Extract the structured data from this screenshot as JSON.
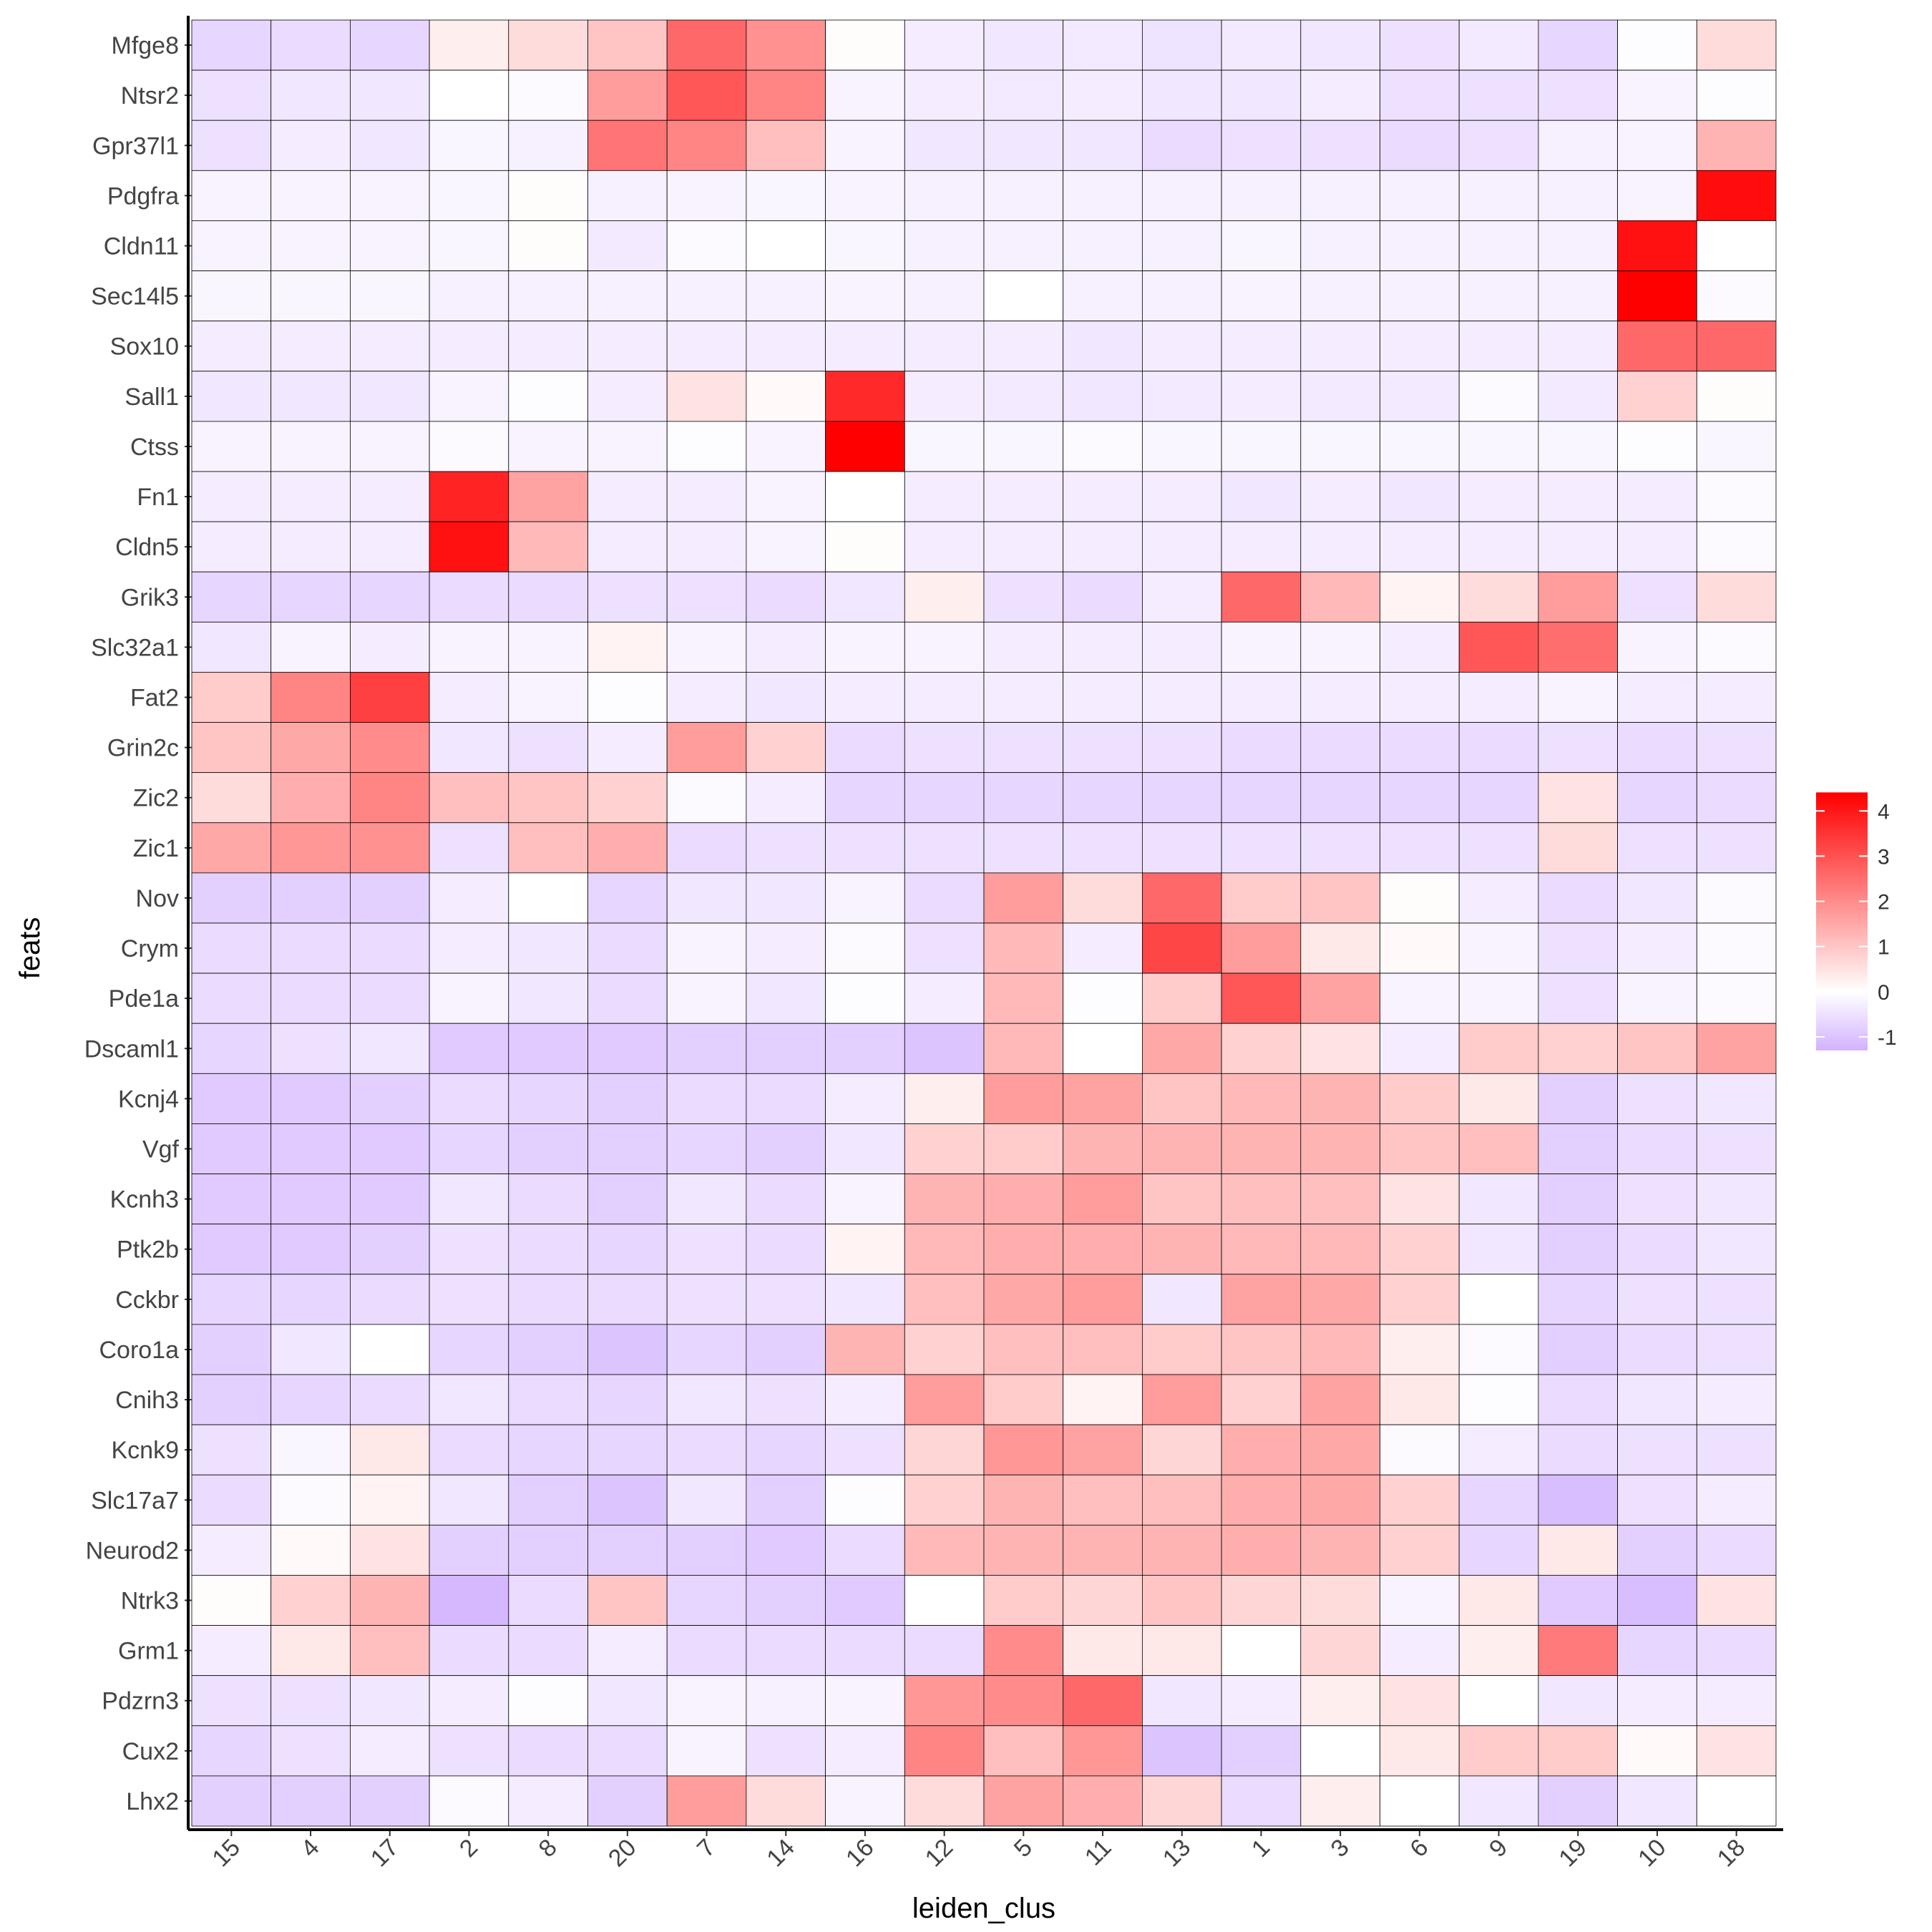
{
  "chart_data": {
    "type": "heatmap",
    "title": "",
    "xlabel": "leiden_clus",
    "ylabel": "feats",
    "x_categories": [
      "15",
      "4",
      "17",
      "2",
      "8",
      "20",
      "7",
      "14",
      "16",
      "12",
      "5",
      "11",
      "13",
      "1",
      "3",
      "6",
      "9",
      "19",
      "10",
      "18"
    ],
    "y_categories": [
      "Mfge8",
      "Ntsr2",
      "Gpr37l1",
      "Pdgfra",
      "Cldn11",
      "Sec14l5",
      "Sox10",
      "Sall1",
      "Ctss",
      "Fn1",
      "Cldn5",
      "Grik3",
      "Slc32a1",
      "Fat2",
      "Grin2c",
      "Zic2",
      "Zic1",
      "Nov",
      "Crym",
      "Pde1a",
      "Dscaml1",
      "Kcnj4",
      "Vgf",
      "Kcnh3",
      "Ptk2b",
      "Cckbr",
      "Coro1a",
      "Cnih3",
      "Kcnk9",
      "Slc17a7",
      "Neurod2",
      "Ntrk3",
      "Grm1",
      "Pdzrn3",
      "Cux2",
      "Lhx2"
    ],
    "values": [
      [
        -0.7,
        -0.6,
        -0.7,
        0.3,
        0.6,
        1.0,
        2.6,
        1.9,
        0.05,
        -0.3,
        -0.4,
        -0.35,
        -0.45,
        -0.35,
        -0.4,
        -0.5,
        -0.35,
        -0.7,
        -0.05,
        0.6
      ],
      [
        -0.5,
        -0.4,
        -0.4,
        0.0,
        -0.1,
        1.7,
        2.9,
        2.1,
        -0.2,
        -0.3,
        -0.35,
        -0.3,
        -0.4,
        -0.4,
        -0.3,
        -0.5,
        -0.5,
        -0.5,
        -0.2,
        -0.05
      ],
      [
        -0.5,
        -0.3,
        -0.4,
        -0.15,
        -0.25,
        2.4,
        2.1,
        1.1,
        -0.2,
        -0.4,
        -0.4,
        -0.4,
        -0.6,
        -0.5,
        -0.5,
        -0.6,
        -0.5,
        -0.25,
        -0.2,
        1.3
      ],
      [
        -0.2,
        -0.2,
        -0.2,
        -0.15,
        0.05,
        -0.25,
        -0.2,
        -0.15,
        -0.2,
        -0.25,
        -0.25,
        -0.25,
        -0.25,
        -0.25,
        -0.25,
        -0.25,
        -0.25,
        -0.25,
        -0.2,
        4.2
      ],
      [
        -0.2,
        -0.2,
        -0.2,
        -0.15,
        0.05,
        -0.35,
        -0.1,
        0.0,
        -0.15,
        -0.25,
        -0.25,
        -0.25,
        -0.25,
        -0.15,
        -0.25,
        -0.25,
        -0.25,
        -0.25,
        4.1,
        0.0
      ],
      [
        -0.15,
        -0.15,
        -0.15,
        -0.25,
        -0.25,
        -0.25,
        -0.25,
        -0.25,
        -0.2,
        -0.25,
        0.0,
        -0.25,
        -0.25,
        -0.2,
        -0.25,
        -0.25,
        -0.25,
        -0.25,
        4.4,
        -0.1
      ],
      [
        -0.3,
        -0.3,
        -0.3,
        -0.3,
        -0.3,
        -0.3,
        -0.3,
        -0.3,
        -0.3,
        -0.3,
        -0.3,
        -0.4,
        -0.3,
        -0.3,
        -0.3,
        -0.3,
        -0.3,
        -0.3,
        2.6,
        2.6
      ],
      [
        -0.4,
        -0.4,
        -0.4,
        -0.2,
        -0.05,
        -0.3,
        0.5,
        0.1,
        3.7,
        -0.3,
        -0.35,
        -0.4,
        -0.35,
        -0.3,
        -0.35,
        -0.35,
        -0.1,
        -0.35,
        0.8,
        0.05
      ],
      [
        -0.2,
        -0.2,
        -0.2,
        -0.1,
        -0.2,
        -0.2,
        -0.05,
        -0.2,
        4.4,
        -0.15,
        -0.15,
        -0.1,
        -0.15,
        -0.15,
        -0.15,
        -0.15,
        -0.15,
        -0.15,
        -0.05,
        -0.15
      ],
      [
        -0.3,
        -0.3,
        -0.3,
        3.8,
        1.6,
        -0.3,
        -0.3,
        -0.2,
        0.0,
        -0.3,
        -0.3,
        -0.3,
        -0.3,
        -0.4,
        -0.3,
        -0.4,
        -0.3,
        -0.3,
        -0.3,
        -0.1
      ],
      [
        -0.3,
        -0.3,
        -0.3,
        4.1,
        1.2,
        -0.3,
        -0.3,
        -0.2,
        0.05,
        -0.3,
        -0.3,
        -0.3,
        -0.3,
        -0.3,
        -0.3,
        -0.3,
        -0.3,
        -0.3,
        -0.3,
        -0.1
      ],
      [
        -0.7,
        -0.7,
        -0.7,
        -0.6,
        -0.6,
        -0.5,
        -0.5,
        -0.6,
        -0.4,
        0.3,
        -0.5,
        -0.6,
        -0.3,
        2.6,
        1.2,
        0.2,
        0.6,
        1.7,
        -0.5,
        0.6
      ],
      [
        -0.4,
        -0.2,
        -0.3,
        -0.2,
        -0.2,
        0.2,
        -0.2,
        -0.3,
        -0.2,
        -0.2,
        -0.3,
        -0.3,
        -0.3,
        -0.2,
        -0.2,
        -0.3,
        2.9,
        2.5,
        -0.2,
        -0.1
      ],
      [
        0.9,
        2.1,
        3.3,
        -0.3,
        -0.2,
        -0.05,
        -0.3,
        -0.4,
        -0.3,
        -0.3,
        -0.3,
        -0.3,
        -0.3,
        -0.3,
        -0.3,
        -0.3,
        -0.3,
        -0.2,
        -0.3,
        -0.3
      ],
      [
        1.0,
        1.5,
        2.0,
        -0.4,
        -0.5,
        -0.3,
        1.7,
        0.8,
        -0.6,
        -0.5,
        -0.5,
        -0.5,
        -0.5,
        -0.6,
        -0.6,
        -0.6,
        -0.6,
        -0.5,
        -0.6,
        -0.5
      ],
      [
        0.6,
        1.4,
        2.1,
        1.1,
        1.0,
        0.8,
        -0.1,
        -0.3,
        -0.7,
        -0.7,
        -0.7,
        -0.7,
        -0.7,
        -0.7,
        -0.7,
        -0.7,
        -0.7,
        0.5,
        -0.7,
        -0.6
      ],
      [
        1.5,
        1.8,
        1.9,
        -0.5,
        1.1,
        1.4,
        -0.6,
        -0.5,
        -0.5,
        -0.5,
        -0.5,
        -0.5,
        -0.5,
        -0.5,
        -0.5,
        -0.5,
        -0.5,
        0.6,
        -0.5,
        -0.5
      ],
      [
        -0.8,
        -0.8,
        -0.8,
        -0.3,
        0.0,
        -0.7,
        -0.4,
        -0.4,
        -0.2,
        -0.6,
        1.7,
        0.6,
        2.6,
        0.9,
        1.0,
        0.05,
        -0.3,
        -0.6,
        -0.4,
        -0.1
      ],
      [
        -0.6,
        -0.6,
        -0.6,
        -0.3,
        -0.4,
        -0.6,
        -0.2,
        -0.3,
        -0.1,
        -0.5,
        1.2,
        -0.3,
        3.2,
        1.7,
        0.4,
        0.1,
        -0.2,
        -0.5,
        -0.3,
        -0.1
      ],
      [
        -0.6,
        -0.6,
        -0.6,
        -0.2,
        -0.4,
        -0.6,
        -0.2,
        -0.4,
        -0.05,
        -0.3,
        1.2,
        -0.05,
        0.9,
        2.9,
        1.6,
        -0.2,
        -0.2,
        -0.5,
        -0.2,
        -0.1
      ],
      [
        -0.7,
        -0.5,
        -0.4,
        -0.9,
        -0.9,
        -0.9,
        -0.8,
        -0.8,
        -0.8,
        -1.0,
        1.2,
        0.0,
        1.5,
        0.8,
        0.5,
        -0.3,
        0.9,
        0.8,
        1.0,
        1.6
      ],
      [
        -0.9,
        -0.9,
        -0.8,
        -0.6,
        -0.7,
        -0.8,
        -0.6,
        -0.6,
        -0.3,
        0.3,
        1.7,
        1.6,
        1.0,
        1.2,
        1.3,
        0.9,
        0.4,
        -0.8,
        -0.5,
        -0.4
      ],
      [
        -0.9,
        -0.9,
        -0.9,
        -0.7,
        -0.8,
        -0.8,
        -0.7,
        -0.8,
        -0.4,
        0.8,
        0.9,
        1.3,
        1.3,
        1.3,
        1.3,
        1.0,
        1.1,
        -0.8,
        -0.6,
        -0.5
      ],
      [
        -0.9,
        -0.9,
        -0.9,
        -0.4,
        -0.6,
        -0.8,
        -0.4,
        -0.6,
        -0.2,
        1.3,
        1.4,
        1.7,
        1.0,
        1.1,
        1.1,
        0.5,
        -0.4,
        -0.8,
        -0.5,
        -0.4
      ],
      [
        -0.9,
        -0.9,
        -0.8,
        -0.5,
        -0.6,
        -0.7,
        -0.5,
        -0.6,
        0.2,
        1.2,
        1.4,
        1.4,
        1.3,
        1.2,
        1.2,
        0.8,
        -0.4,
        -0.8,
        -0.6,
        -0.4
      ],
      [
        -0.7,
        -0.7,
        -0.6,
        -0.5,
        -0.6,
        -0.6,
        -0.5,
        -0.5,
        -0.4,
        1.1,
        1.5,
        1.7,
        -0.4,
        1.6,
        1.5,
        0.8,
        0.0,
        -0.7,
        -0.5,
        -0.5
      ],
      [
        -0.8,
        -0.4,
        0.0,
        -0.7,
        -0.8,
        -1.0,
        -0.7,
        -0.8,
        1.3,
        0.8,
        1.1,
        1.1,
        0.9,
        1.0,
        1.2,
        0.3,
        -0.1,
        -0.8,
        -0.6,
        -0.5
      ],
      [
        -0.8,
        -0.7,
        -0.6,
        -0.4,
        -0.6,
        -0.7,
        -0.4,
        -0.5,
        -0.3,
        1.7,
        0.9,
        0.2,
        1.7,
        0.8,
        1.6,
        0.4,
        -0.05,
        -0.6,
        -0.4,
        -0.3
      ],
      [
        -0.5,
        -0.15,
        0.4,
        -0.6,
        -0.7,
        -0.7,
        -0.6,
        -0.7,
        -0.5,
        0.7,
        1.8,
        1.6,
        0.7,
        1.4,
        1.5,
        -0.1,
        -0.3,
        -0.6,
        -0.5,
        -0.5
      ],
      [
        -0.6,
        -0.1,
        0.2,
        -0.4,
        -0.8,
        -1.0,
        -0.4,
        -0.8,
        -0.05,
        0.8,
        1.3,
        1.1,
        1.1,
        1.4,
        1.5,
        0.8,
        -0.7,
        -1.1,
        -0.5,
        -0.3
      ],
      [
        -0.3,
        0.1,
        0.5,
        -0.8,
        -0.8,
        -0.8,
        -0.8,
        -0.9,
        -0.6,
        1.2,
        1.3,
        1.3,
        1.3,
        1.4,
        1.3,
        0.8,
        -0.7,
        0.4,
        -0.8,
        -0.6
      ],
      [
        0.05,
        0.8,
        1.3,
        -1.2,
        -0.6,
        1.0,
        -0.7,
        -0.8,
        -0.9,
        0.0,
        0.9,
        0.7,
        1.0,
        0.7,
        0.6,
        -0.2,
        0.4,
        -0.9,
        -1.1,
        0.5
      ],
      [
        -0.3,
        0.4,
        1.1,
        -0.6,
        -0.6,
        -0.3,
        -0.6,
        -0.6,
        -0.6,
        -0.6,
        2.0,
        0.4,
        0.4,
        0.0,
        0.7,
        -0.3,
        0.3,
        2.3,
        -0.7,
        -0.6
      ],
      [
        -0.5,
        -0.5,
        -0.4,
        -0.3,
        -0.05,
        -0.4,
        -0.2,
        -0.25,
        -0.2,
        1.8,
        2.0,
        2.6,
        -0.4,
        -0.3,
        0.3,
        0.5,
        0.0,
        -0.4,
        -0.3,
        -0.3
      ],
      [
        -0.7,
        -0.5,
        -0.3,
        -0.5,
        -0.6,
        -0.6,
        -0.2,
        -0.5,
        -0.3,
        2.1,
        1.1,
        1.8,
        -1.0,
        -0.8,
        0.0,
        0.4,
        0.9,
        0.9,
        0.1,
        0.5
      ],
      [
        -0.8,
        -0.8,
        -0.8,
        -0.1,
        -0.3,
        -0.8,
        1.7,
        0.6,
        -0.2,
        0.6,
        1.6,
        1.4,
        0.7,
        -0.6,
        0.3,
        0.0,
        -0.4,
        -0.8,
        -0.4,
        0.0
      ]
    ],
    "color_scale": {
      "low": "#d2b2ff",
      "mid": "#ffffff",
      "high": "#ff0000",
      "min": -1.3,
      "mid_value": 0,
      "max": 4.4
    },
    "legend": {
      "ticks": [
        -1,
        0,
        1,
        2,
        3,
        4
      ],
      "tick_labels": [
        "-1",
        "0",
        "1",
        "2",
        "3",
        "4"
      ],
      "position": "right"
    },
    "grid": false
  }
}
